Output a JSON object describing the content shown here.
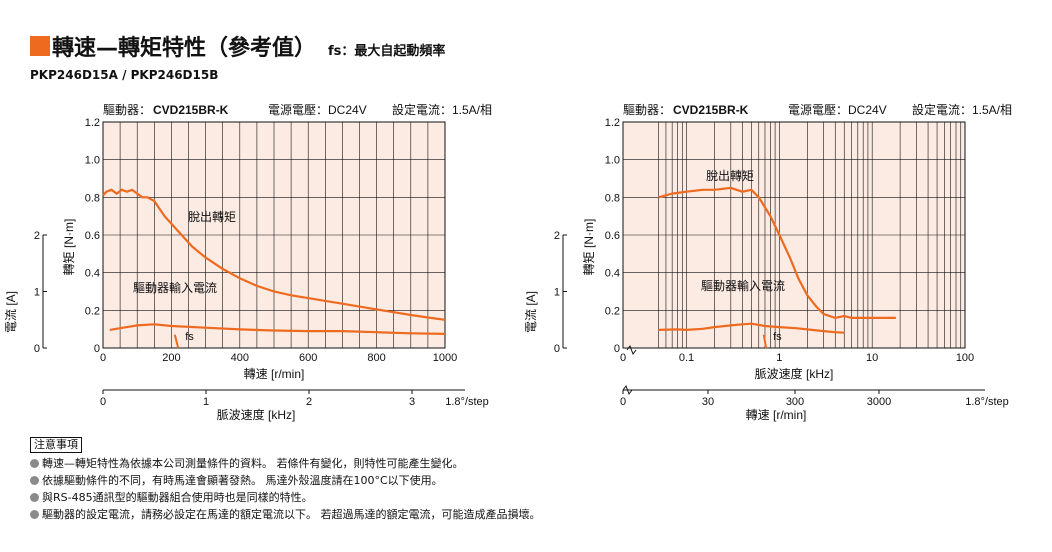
{
  "header": {
    "title": "轉速—轉矩特性（參考值）",
    "fs_note": "fs：最大自起動頻率",
    "model": "PKP246D15A / PKP246D15B"
  },
  "colors": {
    "accent": "#ee6a1f",
    "plot_bg": "#fcebe3",
    "curve": "#ee6a1f",
    "grid": "#111111"
  },
  "chart_data": [
    {
      "type": "line",
      "condition_text": {
        "driver_label": "驅動器：",
        "driver_model": "CVD215BR-K",
        "voltage": "電源電壓：DC24V",
        "current": "設定電流：1.5A/相"
      },
      "x_scale": "linear",
      "xlabel": "轉速 [r/min]",
      "x_ticks": [
        "0",
        "200",
        "400",
        "600",
        "800",
        "1000"
      ],
      "xlim": [
        0,
        1000
      ],
      "ylabel": "轉矩 [N·m]",
      "y_ticks": [
        "0",
        "0.2",
        "0.4",
        "0.6",
        "0.8",
        "1.0",
        "1.2"
      ],
      "ylim": [
        0,
        1.2
      ],
      "y2label": "電流 [A]",
      "y2_ticks": [
        "0",
        "1",
        "2"
      ],
      "y2lim": [
        0,
        2
      ],
      "secondary_xlabel": "脈波速度 [kHz]",
      "secondary_ticks": [
        "0",
        "1",
        "2",
        "3"
      ],
      "secondary_suffix": "1.8°/step",
      "fs_label": "fs",
      "series": [
        {
          "name": "脫出轉矩",
          "axis": "torque",
          "x": [
            0,
            10,
            25,
            40,
            55,
            70,
            85,
            100,
            115,
            130,
            150,
            180,
            220,
            260,
            300,
            350,
            400,
            450,
            500,
            550,
            600,
            650,
            700,
            750,
            800,
            850,
            900,
            950,
            1000
          ],
          "y": [
            0.81,
            0.83,
            0.84,
            0.82,
            0.84,
            0.83,
            0.84,
            0.82,
            0.8,
            0.8,
            0.78,
            0.7,
            0.62,
            0.54,
            0.48,
            0.42,
            0.37,
            0.33,
            0.3,
            0.28,
            0.265,
            0.25,
            0.235,
            0.22,
            0.205,
            0.19,
            0.175,
            0.162,
            0.15
          ]
        },
        {
          "name": "驅動器輸入電流",
          "axis": "current",
          "x": [
            20,
            50,
            100,
            150,
            200,
            300,
            400,
            500,
            600,
            700,
            800,
            900,
            1000
          ],
          "y": [
            0.32,
            0.35,
            0.4,
            0.42,
            0.39,
            0.36,
            0.33,
            0.31,
            0.3,
            0.3,
            0.28,
            0.26,
            0.25
          ]
        },
        {
          "name": "fs",
          "axis": "torque",
          "x": [
            210,
            220
          ],
          "y": [
            0.07,
            0.0
          ]
        }
      ]
    },
    {
      "type": "line",
      "condition_text": {
        "driver_label": "驅動器：",
        "driver_model": "CVD215BR-K",
        "voltage": "電源電壓：DC24V",
        "current": "設定電流：1.5A/相"
      },
      "x_scale": "log",
      "xlabel": "脈波速度 [kHz]",
      "x_ticks": [
        "0.1",
        "1",
        "10",
        "100"
      ],
      "xlim": [
        0.01,
        100
      ],
      "x_zero_label": "0",
      "ylabel": "轉矩 [N·m]",
      "y_ticks": [
        "0",
        "0.2",
        "0.4",
        "0.6",
        "0.8",
        "1.0",
        "1.2"
      ],
      "ylim": [
        0,
        1.2
      ],
      "y2label": "電流 [A]",
      "y2_ticks": [
        "0",
        "1",
        "2"
      ],
      "y2lim": [
        0,
        2
      ],
      "secondary_xlabel": "轉速 [r/min]",
      "secondary_ticks": [
        "0",
        "30",
        "300",
        "3000"
      ],
      "secondary_suffix": "1.8°/step",
      "fs_label": "fs",
      "series": [
        {
          "name": "脫出轉矩",
          "axis": "torque",
          "x": [
            0.05,
            0.07,
            0.1,
            0.15,
            0.2,
            0.3,
            0.4,
            0.5,
            0.6,
            0.8,
            1.0,
            1.3,
            1.6,
            2.0,
            2.5,
            3.0,
            4.0,
            5.0,
            6.0,
            8.0,
            10.0,
            13.0,
            16.0,
            18.0
          ],
          "y": [
            0.8,
            0.82,
            0.83,
            0.84,
            0.84,
            0.85,
            0.83,
            0.84,
            0.8,
            0.7,
            0.6,
            0.48,
            0.37,
            0.28,
            0.22,
            0.18,
            0.16,
            0.17,
            0.16,
            0.16,
            0.16,
            0.16,
            0.16,
            0.16
          ]
        },
        {
          "name": "驅動器輸入電流",
          "axis": "current",
          "x": [
            0.05,
            0.08,
            0.1,
            0.15,
            0.2,
            0.3,
            0.4,
            0.5,
            0.7,
            1.0,
            1.5,
            2.0,
            3.0,
            4.0,
            5.0
          ],
          "y": [
            0.32,
            0.33,
            0.32,
            0.34,
            0.37,
            0.4,
            0.42,
            0.43,
            0.39,
            0.37,
            0.35,
            0.33,
            0.3,
            0.28,
            0.27
          ]
        },
        {
          "name": "fs",
          "axis": "torque",
          "x": [
            0.68,
            0.72
          ],
          "y": [
            0.07,
            0.0
          ]
        }
      ]
    }
  ],
  "notes": {
    "title": "注意事項",
    "items": [
      "轉速—轉矩特性為依據本公司測量條件的資料。 若條件有變化，則特性可能產生變化。",
      "依據驅動條件的不同，有時馬達會顯著發熱。 馬達外殼溫度請在100°C以下使用。",
      "與RS-485通訊型的驅動器組合使用時也是同樣的特性。",
      "驅動器的設定電流，請務必設定在馬達的額定電流以下。 若超過馬達的額定電流，可能造成產品損壞。"
    ]
  }
}
